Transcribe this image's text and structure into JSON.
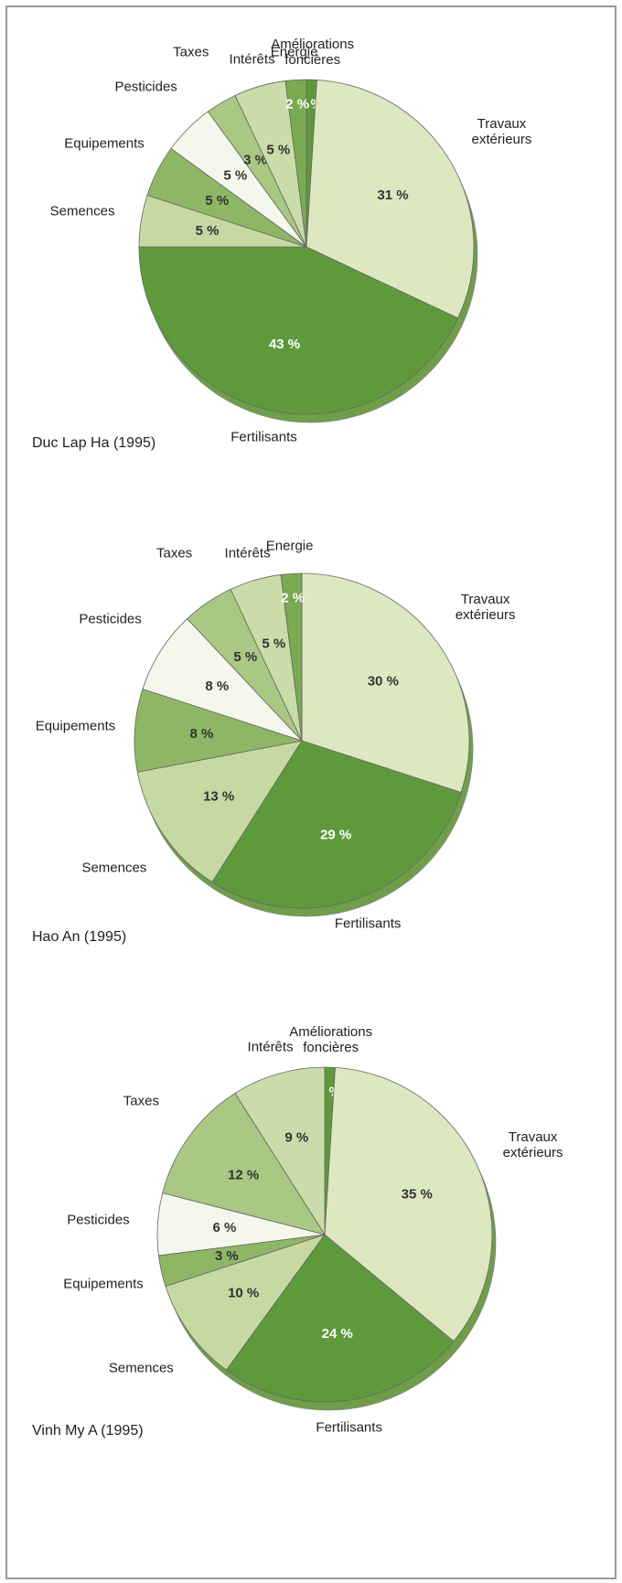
{
  "chart_data": [
    {
      "type": "pie",
      "title": "Duc Lap Ha (1995)",
      "categories": [
        "Améliorations foncières",
        "Travaux extérieurs",
        "Fertilisants",
        "Semences",
        "Equipements",
        "Pesticides",
        "Taxes",
        "Intérêts",
        "Energie"
      ],
      "values": [
        1,
        31,
        43,
        5,
        5,
        5,
        3,
        5,
        2
      ],
      "value_labels": [
        "1 %",
        "31 %",
        "43 %",
        "5 %",
        "5 %",
        "5 %",
        "3 %",
        "5 %",
        "2 %"
      ],
      "colors": [
        "#5e9a3c",
        "#dde7c0",
        "#5e9a3c",
        "#c6d9a2",
        "#8db765",
        "#f5f7ec",
        "#a9c883",
        "#c9dcaa",
        "#7aaa52"
      ]
    },
    {
      "type": "pie",
      "title": "Hao An (1995)",
      "categories": [
        "Travaux extérieurs",
        "Fertilisants",
        "Semences",
        "Equipements",
        "Pesticides",
        "Taxes",
        "Intérêts",
        "Energie"
      ],
      "values": [
        30,
        29,
        13,
        8,
        8,
        5,
        5,
        2
      ],
      "value_labels": [
        "30 %",
        "29 %",
        "13 %",
        "8 %",
        "8 %",
        "5 %",
        "5 %",
        "2 %"
      ],
      "colors": [
        "#dde7c0",
        "#5e9a3c",
        "#c6d9a2",
        "#8db765",
        "#f5f7ec",
        "#a9c883",
        "#c9dcaa",
        "#7aaa52"
      ]
    },
    {
      "type": "pie",
      "title": "Vinh My A (1995)",
      "categories": [
        "Améliorations foncières",
        "Travaux extérieurs",
        "Fertilisants",
        "Semences",
        "Equipements",
        "Pesticides",
        "Taxes",
        "Intérêts"
      ],
      "values": [
        1,
        35,
        24,
        10,
        3,
        6,
        12,
        9
      ],
      "value_labels": [
        "1 %",
        "35 %",
        "24 %",
        "10 %",
        "3 %",
        "6 %",
        "12 %",
        "9 %"
      ],
      "colors": [
        "#5e9a3c",
        "#dde7c0",
        "#5e9a3c",
        "#c6d9a2",
        "#8db765",
        "#f5f7ec",
        "#a9c883",
        "#c9dcaa"
      ]
    }
  ]
}
